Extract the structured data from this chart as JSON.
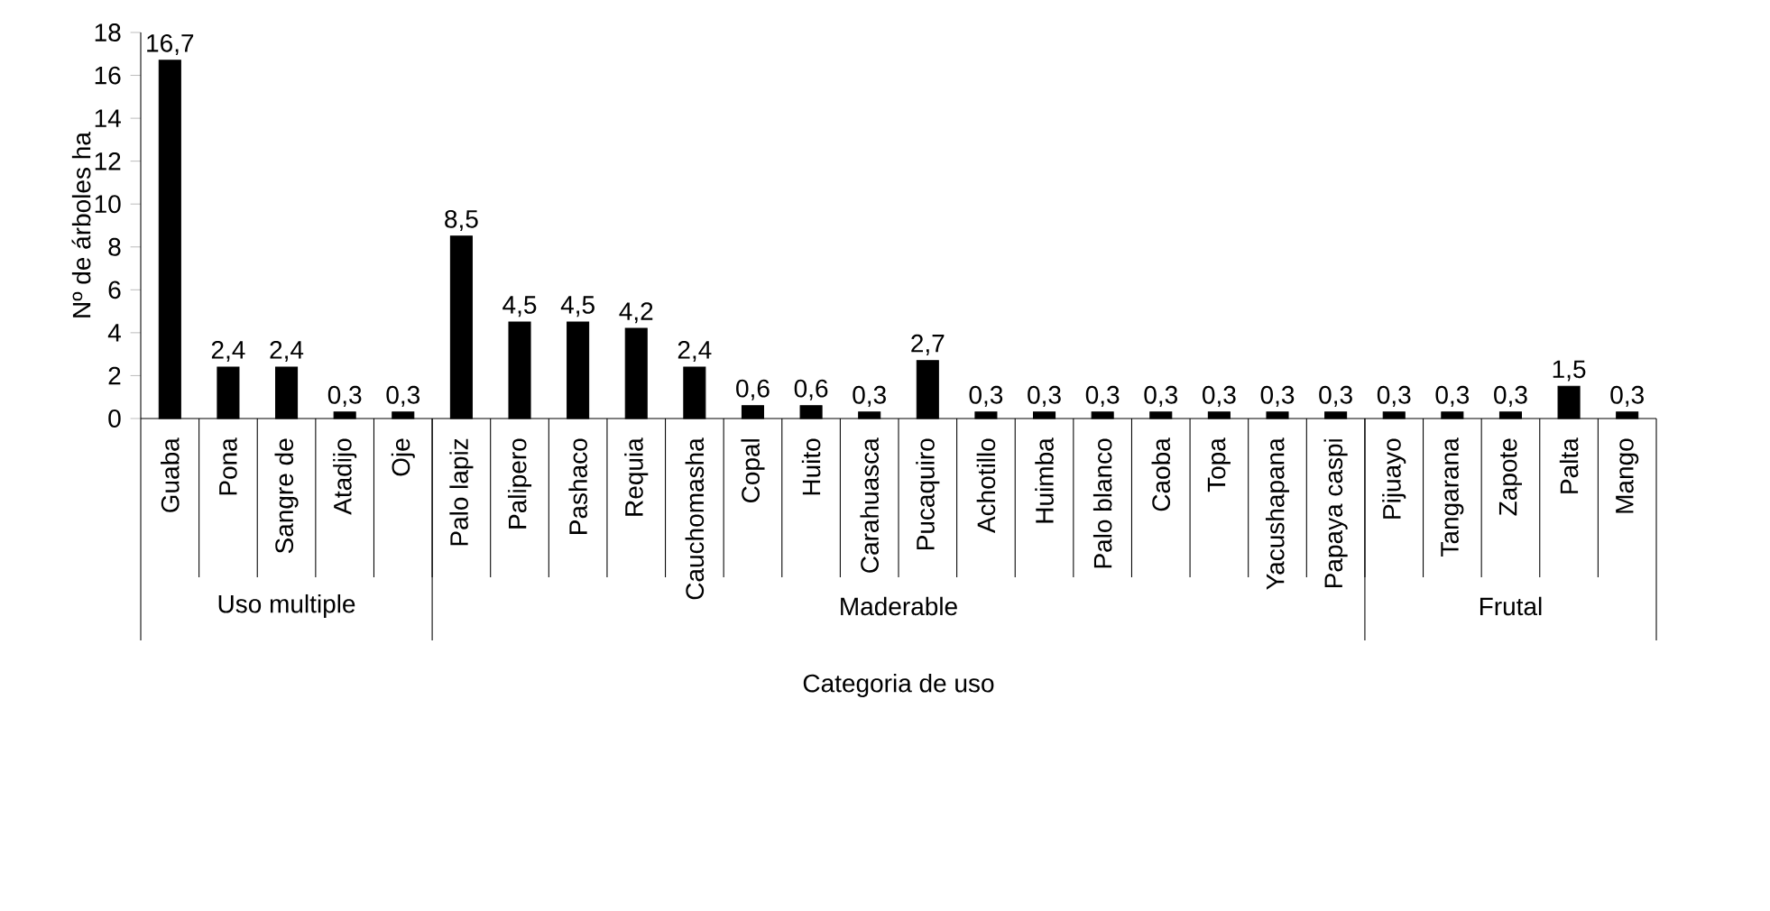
{
  "chart_data": {
    "type": "bar",
    "xlabel": "Categoria de uso",
    "ylabel": "Nº de árboles ha",
    "categories": [
      "Guaba",
      "Pona",
      "Sangre de",
      "Atadijo",
      "Oje",
      "Palo lapiz",
      "Palipero",
      "Pashaco",
      "Requia",
      "Cauchomasha",
      "Copal",
      "Huito",
      "Carahuasca",
      "Pucaquiro",
      "Achotillo",
      "Huimba",
      "Palo blanco",
      "Caoba",
      "Topa",
      "Yacushapana",
      "Papaya caspi",
      "Pijuayo",
      "Tangarana",
      "Zapote",
      "Palta",
      "Mango"
    ],
    "values": [
      16.7,
      2.4,
      2.4,
      0.3,
      0.3,
      8.5,
      4.5,
      4.5,
      4.2,
      2.4,
      0.6,
      0.6,
      0.3,
      2.7,
      0.3,
      0.3,
      0.3,
      0.3,
      0.3,
      0.3,
      0.3,
      0.3,
      0.3,
      0.3,
      1.5,
      0.3
    ],
    "value_labels": [
      "16,7",
      "2,4",
      "2,4",
      "0,3",
      "0,3",
      "8,5",
      "4,5",
      "4,5",
      "4,2",
      "2,4",
      "0,6",
      "0,6",
      "0,3",
      "2,7",
      "0,3",
      "0,3",
      "0,3",
      "0,3",
      "0,3",
      "0,3",
      "0,3",
      "0,3",
      "0,3",
      "0,3",
      "1,5",
      "0,3"
    ],
    "color": "#000000",
    "ylim": [
      0,
      18
    ],
    "yticks": [
      0,
      2,
      4,
      6,
      8,
      10,
      12,
      14,
      16,
      18
    ],
    "grid": false,
    "annotations": [
      "Uso multiple",
      "Maderable",
      "Frutal"
    ]
  }
}
